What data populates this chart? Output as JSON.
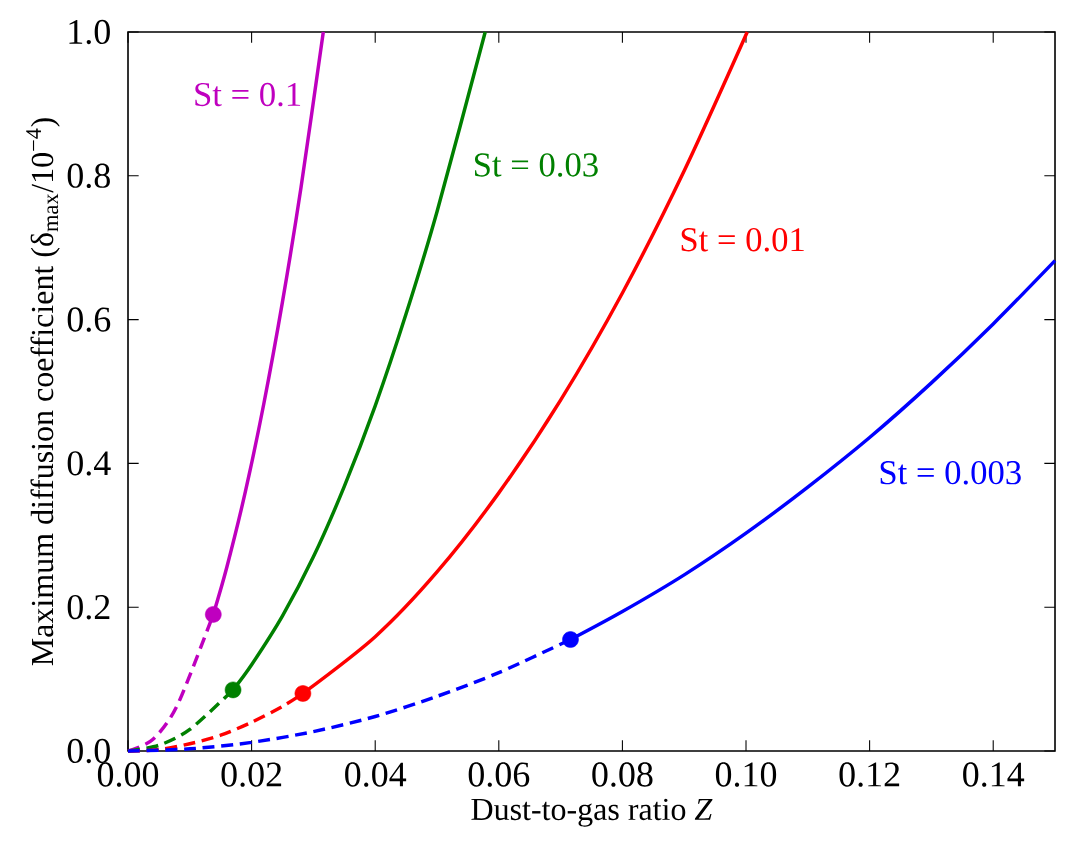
{
  "chart_data": {
    "type": "line",
    "xlabel": "Dust-to-gas ratio *Z*",
    "ylabel": "Maximum diffusion coefficient (δ$_{max}$/10$^{−4}$)",
    "xlim": [
      0,
      0.15
    ],
    "ylim": [
      0,
      1.0
    ],
    "xticks": [
      {
        "value": 0,
        "label": "0.00"
      },
      {
        "value": 0.02,
        "label": "0.02"
      },
      {
        "value": 0.04,
        "label": "0.04"
      },
      {
        "value": 0.06,
        "label": "0.06"
      },
      {
        "value": 0.08,
        "label": "0.08"
      },
      {
        "value": 0.1,
        "label": "0.10"
      },
      {
        "value": 0.12,
        "label": "0.12"
      },
      {
        "value": 0.14,
        "label": "0.14"
      }
    ],
    "yticks": [
      {
        "value": 0,
        "label": "0.0"
      },
      {
        "value": 0.2,
        "label": "0.2"
      },
      {
        "value": 0.4,
        "label": "0.4"
      },
      {
        "value": 0.6,
        "label": "0.6"
      },
      {
        "value": 0.8,
        "label": "0.8"
      },
      {
        "value": 1.0,
        "label": "1.0"
      }
    ],
    "grid": false,
    "series": [
      {
        "line_style": "dashed",
        "color": "#bf00bf",
        "x": [
          0,
          0.004,
          0.008,
          0.0138
        ],
        "values": [
          0,
          0.016,
          0.064,
          0.19
        ]
      },
      {
        "line_style": "solid",
        "name": "St = 0.1",
        "color": "#bf00bf",
        "x": [
          0.0138,
          0.016,
          0.019,
          0.022,
          0.025,
          0.028,
          0.0316
        ],
        "values": [
          0.19,
          0.256,
          0.361,
          0.484,
          0.625,
          0.784,
          1.0
        ]
      },
      {
        "type": "scatter",
        "marker": "circle",
        "color": "#bf00bf",
        "x": [
          0.0138
        ],
        "values": [
          0.19
        ]
      },
      {
        "line_style": "dashed",
        "color": "#008000",
        "x": [
          0,
          0.005,
          0.01,
          0.017
        ],
        "values": [
          0,
          0.008,
          0.03,
          0.085
        ]
      },
      {
        "line_style": "solid",
        "name": "St = 0.03",
        "color": "#008000",
        "x": [
          0.017,
          0.02,
          0.025,
          0.03,
          0.035,
          0.04,
          0.045,
          0.05,
          0.0578
        ],
        "values": [
          0.085,
          0.12,
          0.188,
          0.27,
          0.368,
          0.48,
          0.608,
          0.75,
          1.0
        ]
      },
      {
        "type": "scatter",
        "marker": "circle",
        "color": "#008000",
        "x": [
          0.017
        ],
        "values": [
          0.085
        ]
      },
      {
        "line_style": "dashed",
        "color": "#ff0000",
        "x": [
          0,
          0.005,
          0.01,
          0.015,
          0.02,
          0.025,
          0.0283
        ],
        "values": [
          0,
          0.002,
          0.01,
          0.022,
          0.04,
          0.062,
          0.08
        ]
      },
      {
        "line_style": "solid",
        "name": "St = 0.01",
        "color": "#ff0000",
        "x": [
          0.0283,
          0.04,
          0.05,
          0.06,
          0.07,
          0.08,
          0.09,
          0.1002
        ],
        "values": [
          0.08,
          0.159,
          0.249,
          0.359,
          0.488,
          0.637,
          0.807,
          1.0
        ]
      },
      {
        "type": "scatter",
        "marker": "circle",
        "color": "#ff0000",
        "x": [
          0.0283
        ],
        "values": [
          0.08
        ]
      },
      {
        "line_style": "dashed",
        "color": "#0000ff",
        "x": [
          0,
          0.01,
          0.02,
          0.03,
          0.04,
          0.05,
          0.06,
          0.0716
        ],
        "values": [
          0,
          0.003,
          0.012,
          0.027,
          0.048,
          0.076,
          0.109,
          0.155
        ]
      },
      {
        "line_style": "solid",
        "name": "St = 0.003",
        "color": "#0000ff",
        "x": [
          0.0716,
          0.08,
          0.09,
          0.1,
          0.11,
          0.12,
          0.13,
          0.14,
          0.15
        ],
        "values": [
          0.155,
          0.194,
          0.245,
          0.303,
          0.367,
          0.436,
          0.512,
          0.594,
          0.682
        ]
      },
      {
        "type": "scatter",
        "marker": "circle",
        "color": "#0000ff",
        "x": [
          0.0716
        ],
        "values": [
          0.155
        ]
      }
    ]
  }
}
